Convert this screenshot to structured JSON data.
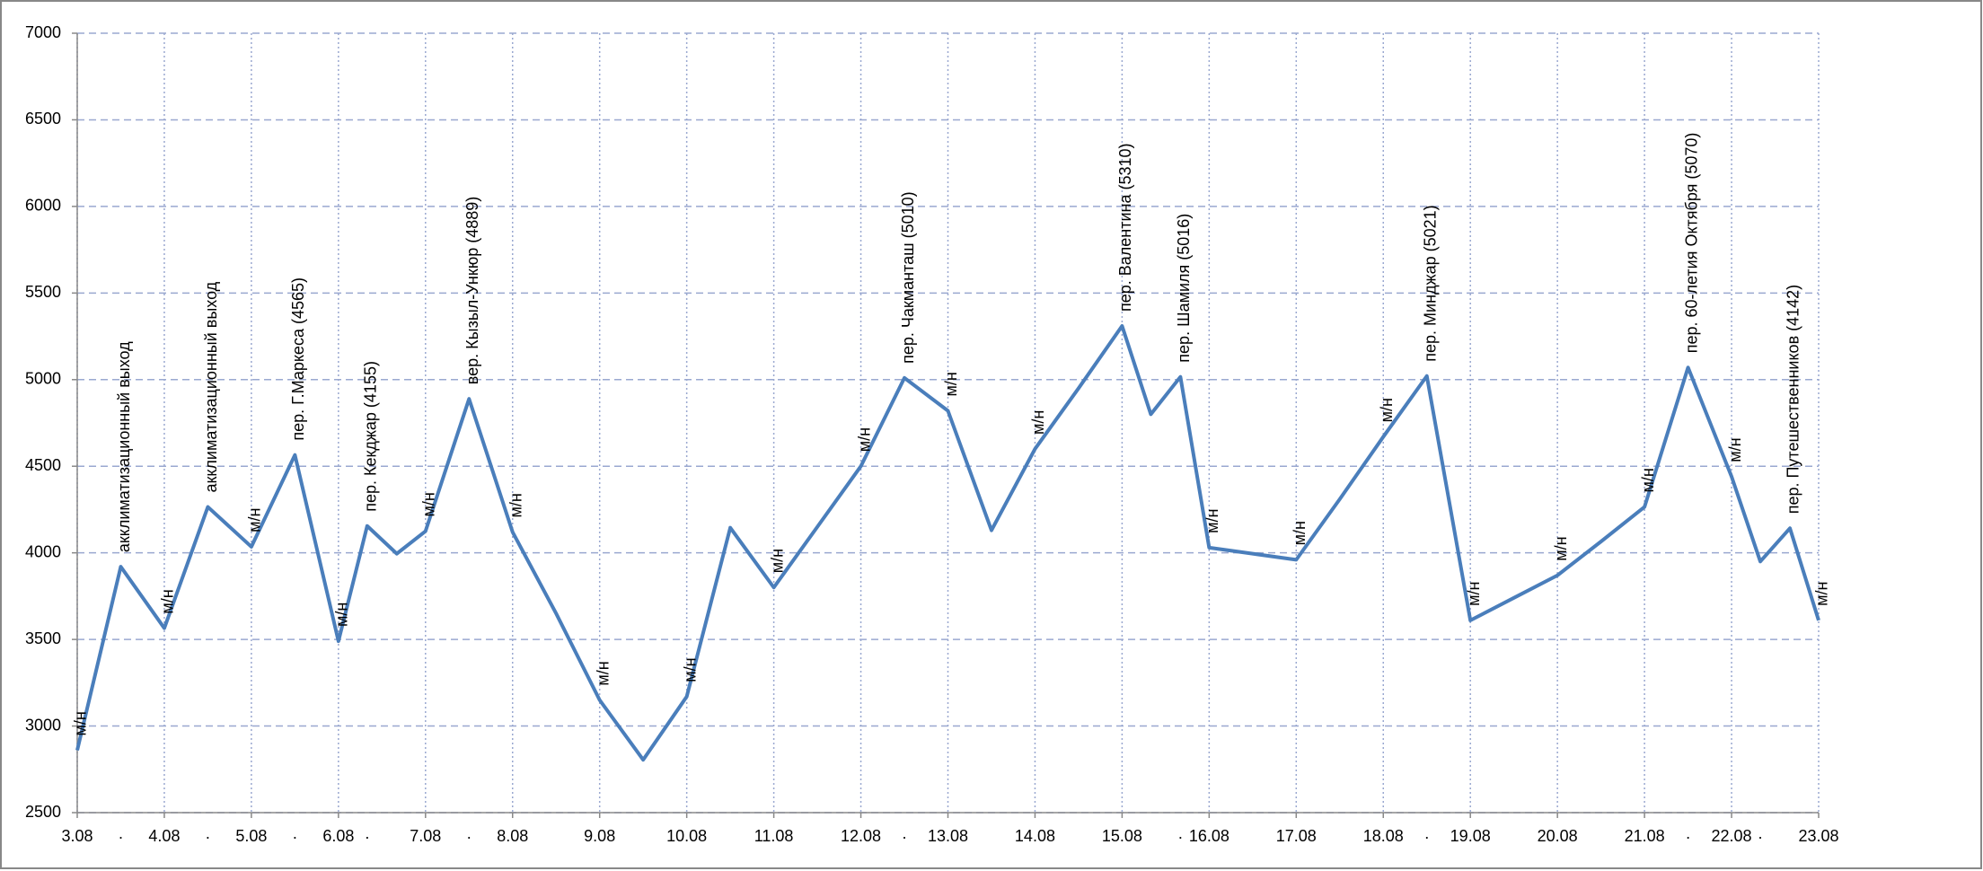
{
  "chart_data": {
    "type": "line",
    "x": [
      3,
      3.5,
      4,
      4.5,
      5,
      5.5,
      6,
      6.33,
      6.67,
      7,
      7.5,
      8,
      8.5,
      9,
      9.5,
      10,
      10.5,
      11,
      11.5,
      12,
      12.5,
      13,
      13.5,
      14,
      14.5,
      15,
      15.33,
      15.67,
      16,
      16.5,
      17,
      17.5,
      18,
      18.5,
      19,
      19.5,
      20,
      20.5,
      21,
      21.5,
      22,
      22.33,
      22.67,
      23
    ],
    "series": [
      {
        "color": "#4a7ebb",
        "values": [
          2860,
          3920,
          3565,
          4265,
          4035,
          4565,
          3490,
          4155,
          3995,
          4125,
          4889,
          4120,
          3650,
          3150,
          2805,
          3170,
          4145,
          3800,
          4150,
          4500,
          5010,
          4820,
          4130,
          4600,
          4950,
          5310,
          4800,
          5016,
          4030,
          3995,
          3960,
          4310,
          4670,
          5021,
          3610,
          3740,
          3870,
          4065,
          4265,
          5070,
          4440,
          3950,
          4142,
          3610
        ],
        "annotations": [
          "м/н",
          "акклиматизационный выход",
          "м/н",
          "акклиматизационный выход",
          "м/н",
          "пер. Г.Маркеса (4565)",
          "м/н",
          "пер. Кекджар (4155)",
          null,
          "м/н",
          "вер. Кызыл-Ункюр (4889)",
          "м/н",
          null,
          "м/н",
          null,
          "м/н",
          null,
          "м/н",
          null,
          "м/н",
          "пер. Чакманташ (5010)",
          "м/н",
          null,
          "м/н",
          null,
          "пер. Валентина (5310)",
          null,
          "пер. Шамиля (5016)",
          "м/н",
          null,
          "м/н",
          null,
          "м/н",
          "пер. Минджар (5021)",
          "м/н",
          null,
          "м/н",
          null,
          "м/н",
          "пер. 60-летия Октября (5070)",
          "м/н",
          null,
          "пер. Путешественников (4142)",
          "м/н"
        ]
      }
    ],
    "xlim": [
      3,
      23
    ],
    "xticks": [
      {
        "value": 3,
        "label": "3.08"
      },
      {
        "value": 4,
        "label": "4.08"
      },
      {
        "value": 5,
        "label": "5.08"
      },
      {
        "value": 6,
        "label": "6.08"
      },
      {
        "value": 7,
        "label": "7.08"
      },
      {
        "value": 8,
        "label": "8.08"
      },
      {
        "value": 9,
        "label": "9.08"
      },
      {
        "value": 10,
        "label": "10.08"
      },
      {
        "value": 11,
        "label": "11.08"
      },
      {
        "value": 12,
        "label": "12.08"
      },
      {
        "value": 13,
        "label": "13.08"
      },
      {
        "value": 14,
        "label": "14.08"
      },
      {
        "value": 15,
        "label": "15.08"
      },
      {
        "value": 16,
        "label": "16.08"
      },
      {
        "value": 17,
        "label": "17.08"
      },
      {
        "value": 18,
        "label": "18.08"
      },
      {
        "value": 19,
        "label": "19.08"
      },
      {
        "value": 20,
        "label": "20.08"
      },
      {
        "value": 21,
        "label": "21.08"
      },
      {
        "value": 22,
        "label": "22.08"
      },
      {
        "value": 23,
        "label": "23.08"
      }
    ],
    "xticks_minor": [
      {
        "value": 3.5,
        "label": "."
      },
      {
        "value": 4.5,
        "label": "."
      },
      {
        "value": 5.5,
        "label": "."
      },
      {
        "value": 6.33,
        "label": "."
      },
      {
        "value": 7.5,
        "label": "."
      },
      {
        "value": 12.5,
        "label": "."
      },
      {
        "value": 15.67,
        "label": "."
      },
      {
        "value": 18.5,
        "label": "."
      },
      {
        "value": 21.5,
        "label": "."
      },
      {
        "value": 22.33,
        "label": "."
      }
    ],
    "ylim": [
      2500,
      7000
    ],
    "yticks": [
      2500,
      3000,
      3500,
      4000,
      4500,
      5000,
      5500,
      6000,
      6500,
      7000
    ],
    "grid": true
  }
}
